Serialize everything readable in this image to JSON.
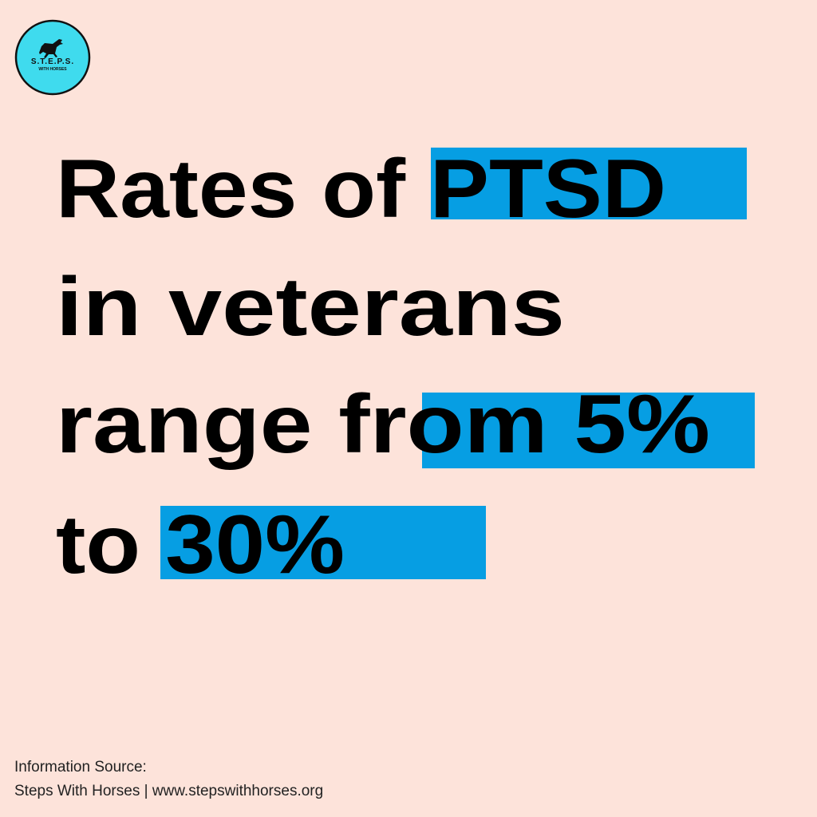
{
  "logo": {
    "title": "S.T.E.P.S.",
    "subtitle": "WITH HORSES"
  },
  "headline": {
    "lines": [
      "Rates of PTSD",
      "in veterans",
      "range from 5%",
      "to 30%"
    ]
  },
  "source": {
    "label": "Information Source:",
    "text": "Steps With Horses | www.stepswithhorses.org"
  }
}
